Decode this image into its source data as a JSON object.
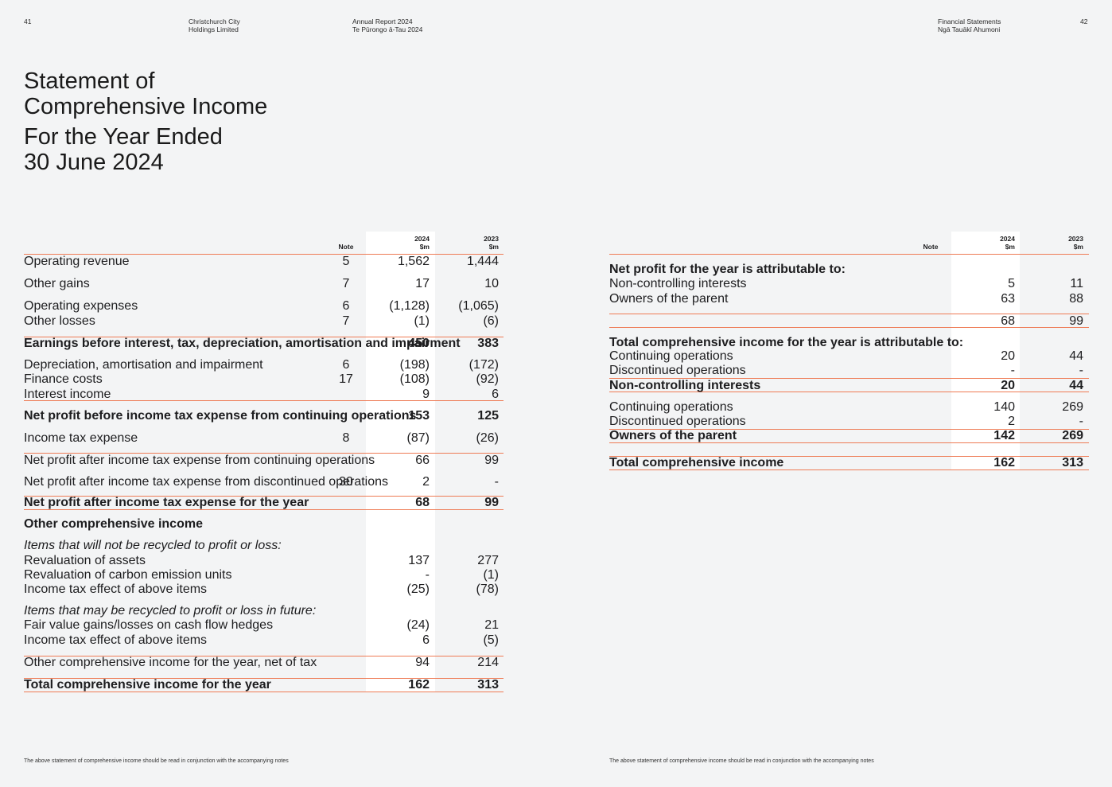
{
  "header": {
    "page_left": "41",
    "org_line1": "Christchurch City",
    "org_line2": "Holdings Limited",
    "report_line1": "Annual Report 2024",
    "report_line2": "Te Pūrongo ā-Tau 2024",
    "section_line1": "Financial Statements",
    "section_line2": "Ngā Tauākī Ahumoni",
    "page_right": "42"
  },
  "title": {
    "line1": "Statement of",
    "line2": "Comprehensive Income",
    "line3": "For the Year Ended",
    "line4": "30 June 2024"
  },
  "columns": {
    "note": "Note",
    "y2024": "2024",
    "y2023": "2023",
    "unit": "$m"
  },
  "left_rows": [
    {
      "label": "Operating revenue",
      "note": "5",
      "v2024": "1,562",
      "v2023": "1,444"
    },
    {
      "label": "Other gains",
      "note": "7",
      "v2024": "17",
      "v2023": "10"
    },
    {
      "label": "Operating expenses",
      "note": "6",
      "v2024": "(1,128)",
      "v2023": "(1,065)"
    },
    {
      "label": "Other losses",
      "note": "7",
      "v2024": "(1)",
      "v2023": "(6)"
    },
    {
      "label": "Earnings before interest, tax, depreciation, amortisation and impairment",
      "note": "",
      "v2024": "450",
      "v2023": "383"
    },
    {
      "label": "Depreciation, amortisation and impairment",
      "note": "6",
      "v2024": "(198)",
      "v2023": "(172)"
    },
    {
      "label": "Finance costs",
      "note": "17",
      "v2024": "(108)",
      "v2023": "(92)"
    },
    {
      "label": "Interest income",
      "note": "",
      "v2024": "9",
      "v2023": "6"
    },
    {
      "label": "Net profit before income tax expense from continuing operations",
      "note": "",
      "v2024": "153",
      "v2023": "125"
    },
    {
      "label": "Income tax expense",
      "note": "8",
      "v2024": "(87)",
      "v2023": "(26)"
    },
    {
      "label": "Net profit after income tax expense from continuing operations",
      "note": "",
      "v2024": "66",
      "v2023": "99"
    },
    {
      "label": "Net profit after income tax expense from discontinued operations",
      "note": "30",
      "v2024": "2",
      "v2023": "-"
    },
    {
      "label": "Net profit after income tax expense for the year",
      "note": "",
      "v2024": "68",
      "v2023": "99"
    },
    {
      "label": "Other comprehensive income",
      "note": "",
      "v2024": "",
      "v2023": ""
    },
    {
      "label": "Items that will not be recycled to profit or loss:",
      "note": "",
      "v2024": "",
      "v2023": ""
    },
    {
      "label": "Revaluation of assets",
      "note": "",
      "v2024": "137",
      "v2023": "277"
    },
    {
      "label": "Revaluation of carbon emission units",
      "note": "",
      "v2024": "-",
      "v2023": "(1)"
    },
    {
      "label": "Income tax effect of above items",
      "note": "",
      "v2024": "(25)",
      "v2023": "(78)"
    },
    {
      "label": "Items that may be recycled to profit or loss in future:",
      "note": "",
      "v2024": "",
      "v2023": ""
    },
    {
      "label": "Fair value gains/losses on cash flow hedges",
      "note": "",
      "v2024": "(24)",
      "v2023": "21"
    },
    {
      "label": "Income tax effect of above items",
      "note": "",
      "v2024": "6",
      "v2023": "(5)"
    },
    {
      "label": "Other comprehensive income for the year, net of tax",
      "note": "",
      "v2024": "94",
      "v2023": "214"
    },
    {
      "label": "Total comprehensive income for the year",
      "note": "",
      "v2024": "162",
      "v2023": "313"
    }
  ],
  "right_rows": [
    {
      "label": "Net profit for the year is attributable to:",
      "v2024": "",
      "v2023": ""
    },
    {
      "label": "Non-controlling interests",
      "v2024": "5",
      "v2023": "11"
    },
    {
      "label": "Owners of the parent",
      "v2024": "63",
      "v2023": "88"
    },
    {
      "label": "",
      "v2024": "68",
      "v2023": "99"
    },
    {
      "label": "Total comprehensive income for the year is attributable to:",
      "v2024": "",
      "v2023": ""
    },
    {
      "label": "Continuing operations",
      "v2024": "20",
      "v2023": "44"
    },
    {
      "label": "Discontinued operations",
      "v2024": "-",
      "v2023": "-"
    },
    {
      "label": "Non-controlling interests",
      "v2024": "20",
      "v2023": "44"
    },
    {
      "label": "Continuing operations",
      "v2024": "140",
      "v2023": "269"
    },
    {
      "label": "Discontinued operations",
      "v2024": "2",
      "v2023": "-"
    },
    {
      "label": "Owners of the parent",
      "v2024": "142",
      "v2023": "269"
    },
    {
      "label": "Total comprehensive income",
      "v2024": "162",
      "v2023": "313"
    }
  ],
  "footnote": "The above statement of comprehensive income should be read in conjunction with the accompanying notes",
  "colors": {
    "rule": "#ee7b55",
    "background": "#f3f4f5",
    "shade": "#ffffff"
  }
}
